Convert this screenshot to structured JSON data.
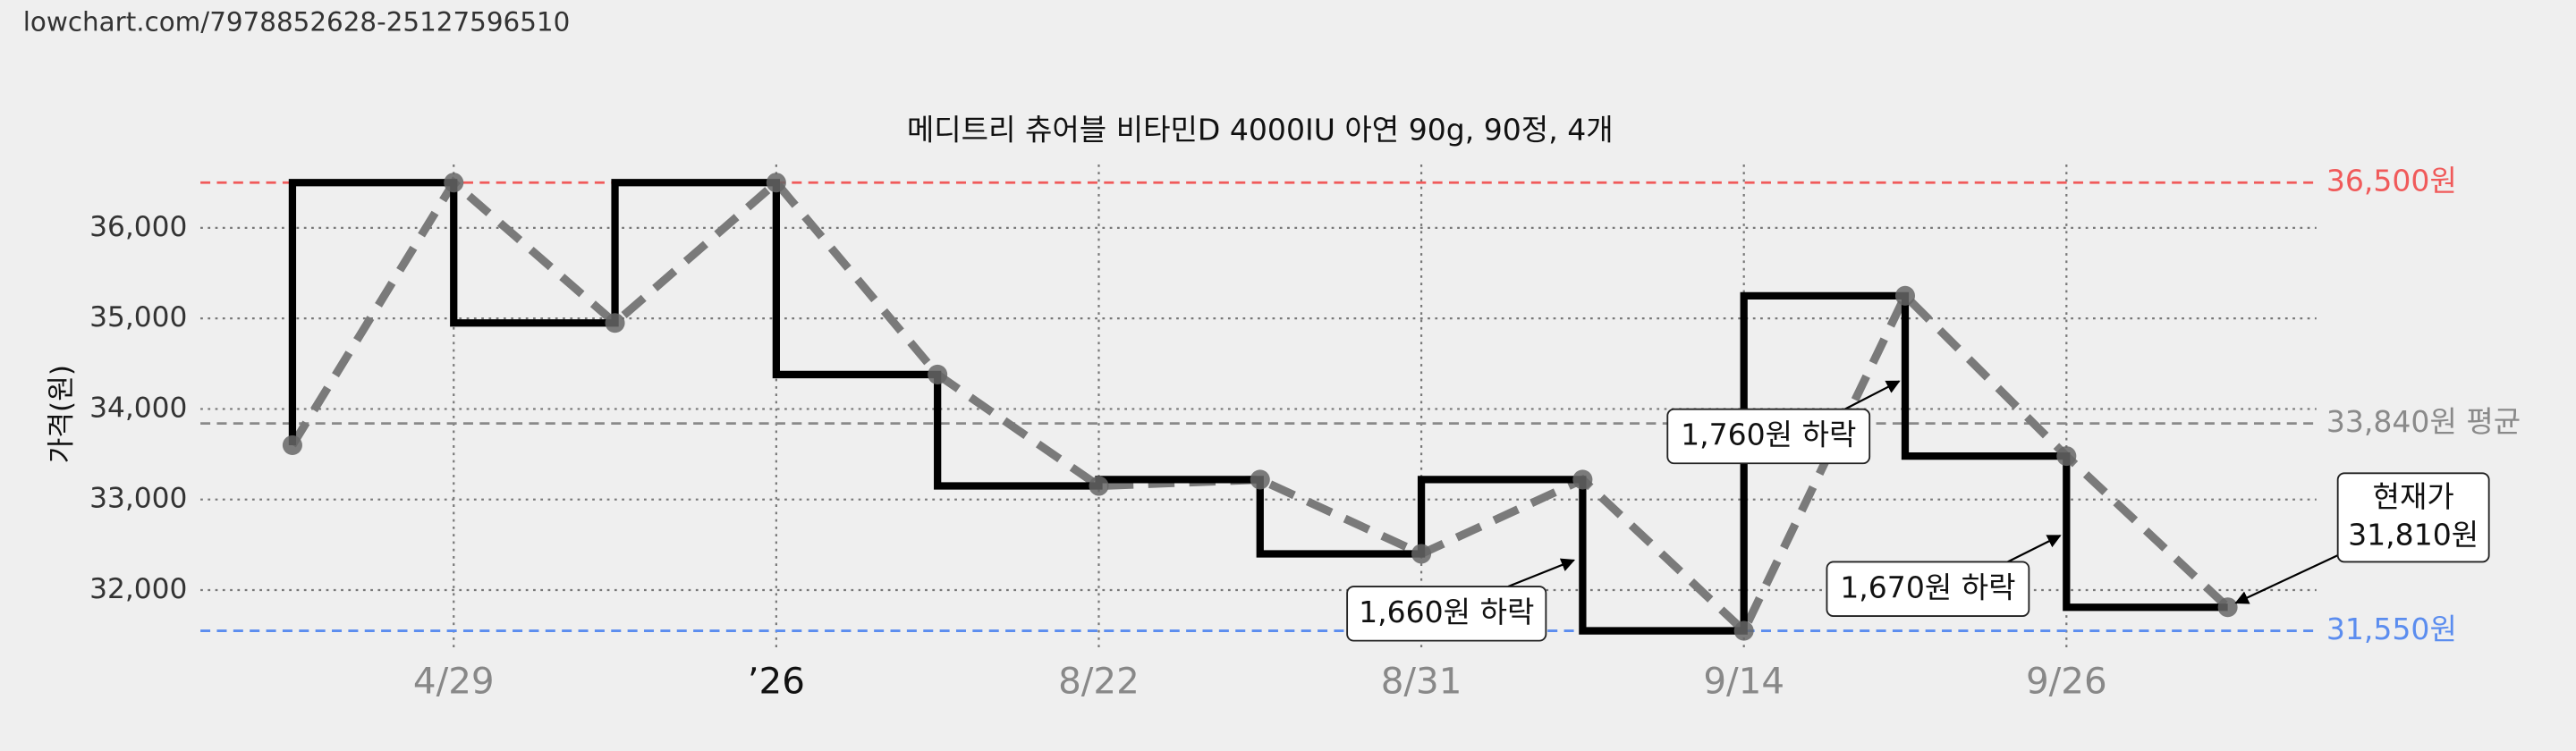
{
  "url": "lowchart.com/7978852628-25127596510",
  "chart_data": {
    "type": "step-line",
    "title": "메디트리 츄어블 비타민D 4000IU 아연 90g, 90정, 4개",
    "y_label": "가격(원)",
    "categories": [
      null,
      "4/29",
      null,
      "’26",
      null,
      "8/22",
      null,
      "8/31",
      null,
      "9/14",
      null,
      "9/26",
      null
    ],
    "values": [
      33600,
      36500,
      34950,
      36500,
      34380,
      33150,
      33220,
      32400,
      33220,
      31550,
      35250,
      33480,
      31810
    ],
    "color": "#000000",
    "trend_color": "#7a7a7a",
    "ylim": [
      31350,
      36700
    ],
    "yticks": [
      {
        "value": 32000,
        "label": "32,000"
      },
      {
        "value": 33000,
        "label": "33,000"
      },
      {
        "value": 34000,
        "label": "34,000"
      },
      {
        "value": 35000,
        "label": "35,000"
      },
      {
        "value": 36000,
        "label": "36,000"
      }
    ],
    "grid": true,
    "reference_lines": [
      {
        "value": 36500,
        "label": "36,500원",
        "color": "#f05a5a"
      },
      {
        "value": 33840,
        "label": "33,840원 평균",
        "color": "#8a8a8a"
      },
      {
        "value": 31550,
        "label": "31,550원",
        "color": "#5b8def"
      }
    ],
    "annotations": [
      [
        "1,660원 하락"
      ],
      [
        "1,760원 하락"
      ],
      [
        "1,670원 하락"
      ],
      [
        "현재가",
        "31,810원"
      ]
    ]
  }
}
